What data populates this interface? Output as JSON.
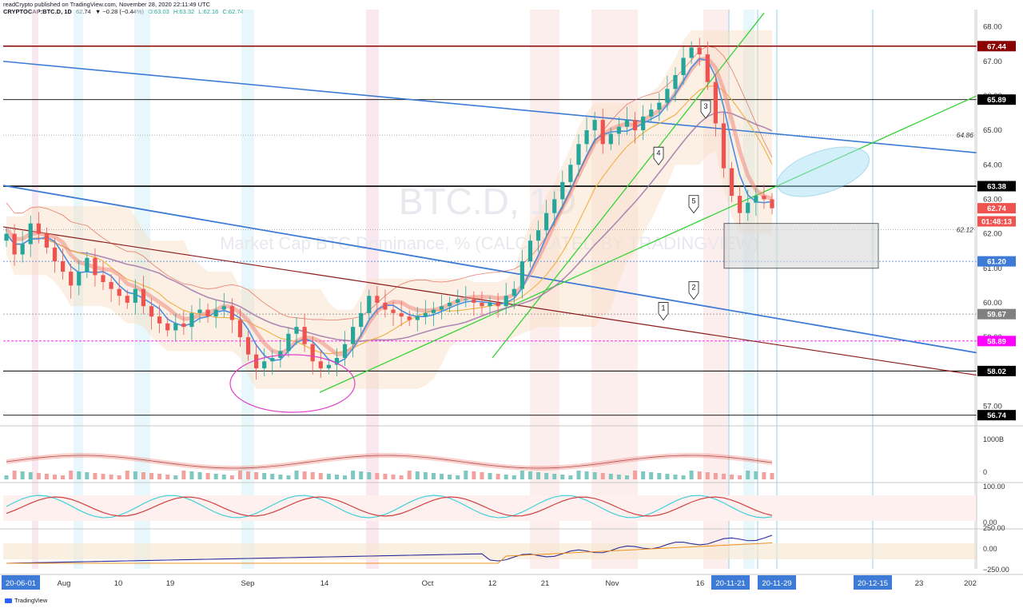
{
  "header": {
    "publisher": "readCrypto published on TradingView.com, November 28, 2020 22:11:49 UTC",
    "symbol": "CRYPTOCAP:BTC.D, 1D",
    "last": "62.74",
    "change": "▼ −0.28 (−0.44%)",
    "open": "O:63.03",
    "high": "H:63.32",
    "low": "L:62.16",
    "close": "C:62.74"
  },
  "footer": {
    "brand": "TradingView"
  },
  "watermark": {
    "symbol": "BTC.D, 1D",
    "description": "Market Cap BTC Dominance, % (CALCULATED BY TRADINGVIEW)"
  },
  "colors": {
    "bull": "#26a69a",
    "bear": "#ef5350",
    "trendBlue": "#3d7bd6",
    "trendGreen": "#35d335",
    "trendDarkRed": "#8b1a1a",
    "magenta": "#e040c8",
    "highlight": "#a9e1f5",
    "rsiBand": "#ffc9c9"
  },
  "chart_data": {
    "type": "candlestick",
    "title": "BTC.D, 1D",
    "subtitle": "Market Cap BTC Dominance, % (CALCULATED BY TRADINGVIEW)",
    "ylim": [
      56.5,
      68.5
    ],
    "y_ticks": [
      "68.00",
      "67.00",
      "66.00",
      "65.00",
      "64.00",
      "63.00",
      "62.00",
      "61.00",
      "60.00",
      "59.00",
      "58.00",
      "57.00"
    ],
    "x_ticks": [
      "20-06-01",
      "Aug",
      "10",
      "19",
      "Sep",
      "14",
      "Oct",
      "12",
      "21",
      "Nov",
      "16",
      "20-11-21",
      "20-11-29",
      "20-12-15",
      "23",
      "202"
    ],
    "price_labels": [
      {
        "text": "67.44",
        "value": 67.44,
        "bg": "#8b0000"
      },
      {
        "text": "65.89",
        "value": 65.89,
        "bg": "#000000"
      },
      {
        "text": "63.38",
        "value": 63.38,
        "bg": "#000000"
      },
      {
        "text": "62.74",
        "value": 62.74,
        "bg": "#ef5350"
      },
      {
        "text": "01:48:13",
        "value": 62.36,
        "bg": "#ef5350"
      },
      {
        "text": "61.20",
        "value": 61.2,
        "bg": "#3d7bd6"
      },
      {
        "text": "59.67",
        "value": 59.67,
        "bg": "#808080"
      },
      {
        "text": "58.89",
        "value": 58.89,
        "bg": "#ff00ff"
      },
      {
        "text": "58.02",
        "value": 58.02,
        "bg": "#000000"
      },
      {
        "text": "56.74",
        "value": 56.74,
        "bg": "#000000"
      }
    ],
    "dotted_labels": [
      {
        "text": "64.86",
        "value": 64.86
      },
      {
        "text": "62.12",
        "value": 62.12
      }
    ],
    "close_series": [
      62.0,
      61.4,
      61.7,
      62.3,
      62.0,
      61.6,
      61.2,
      60.9,
      60.5,
      60.9,
      61.3,
      60.8,
      60.6,
      60.4,
      60.2,
      60.0,
      60.4,
      59.9,
      59.6,
      59.4,
      59.2,
      59.4,
      59.3,
      59.7,
      59.8,
      59.6,
      59.8,
      59.9,
      59.5,
      59.0,
      58.5,
      58.1,
      58.3,
      58.4,
      58.6,
      59.1,
      59.3,
      58.8,
      58.3,
      58.1,
      58.2,
      58.4,
      58.8,
      59.3,
      59.7,
      60.2,
      60.0,
      59.8,
      59.7,
      59.6,
      59.5,
      59.6,
      59.7,
      59.8,
      59.9,
      60.0,
      60.1,
      60.1,
      60.0,
      59.9,
      60.0,
      59.9,
      60.2,
      60.4,
      61.2,
      61.8,
      62.1,
      62.6,
      63.0,
      63.5,
      64.0,
      64.6,
      65.0,
      65.3,
      64.6,
      64.9,
      65.1,
      65.3,
      65.0,
      65.4,
      65.6,
      65.8,
      66.2,
      66.6,
      67.1,
      67.4,
      67.2,
      66.4,
      65.2,
      63.9,
      63.1,
      62.6,
      62.9,
      63.1,
      63.0,
      62.74
    ],
    "events": [
      {
        "label": "1",
        "value": 59.5
      },
      {
        "label": "2",
        "value": 60.1
      },
      {
        "label": "3",
        "value": 65.35
      },
      {
        "label": "4",
        "value": 64.0
      },
      {
        "label": "5",
        "value": 62.6
      }
    ],
    "indicators": [
      {
        "name": "volume",
        "axis": [
          "1000B",
          "0"
        ]
      },
      {
        "name": "stochastic",
        "axis": [
          "100.00",
          "0.00"
        ]
      },
      {
        "name": "oscillator",
        "axis": [
          "250.00",
          "0.00",
          "−250.00"
        ]
      }
    ]
  }
}
